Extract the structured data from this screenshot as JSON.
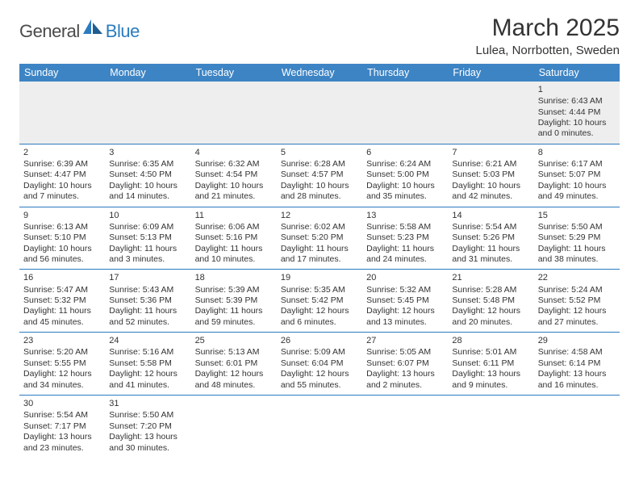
{
  "logo": {
    "text_dark": "General",
    "text_blue": "Blue",
    "dark_color": "#4a4a4a",
    "blue_color": "#2b7bbf"
  },
  "title": "March 2025",
  "location": "Lulea, Norrbotten, Sweden",
  "colors": {
    "header_bg": "#3d84c4",
    "header_text": "#ffffff",
    "cell_border": "#2b7bbf",
    "empty_bg": "#eeeeee",
    "text": "#333333",
    "background": "#ffffff"
  },
  "fonts": {
    "title_size": 30,
    "location_size": 15,
    "weekday_size": 12.5,
    "cell_size": 10.5
  },
  "weekdays": [
    "Sunday",
    "Monday",
    "Tuesday",
    "Wednesday",
    "Thursday",
    "Friday",
    "Saturday"
  ],
  "grid": [
    [
      null,
      null,
      null,
      null,
      null,
      null,
      {
        "n": "1",
        "sr": "Sunrise: 6:43 AM",
        "ss": "Sunset: 4:44 PM",
        "dl1": "Daylight: 10 hours",
        "dl2": "and 0 minutes."
      }
    ],
    [
      {
        "n": "2",
        "sr": "Sunrise: 6:39 AM",
        "ss": "Sunset: 4:47 PM",
        "dl1": "Daylight: 10 hours",
        "dl2": "and 7 minutes."
      },
      {
        "n": "3",
        "sr": "Sunrise: 6:35 AM",
        "ss": "Sunset: 4:50 PM",
        "dl1": "Daylight: 10 hours",
        "dl2": "and 14 minutes."
      },
      {
        "n": "4",
        "sr": "Sunrise: 6:32 AM",
        "ss": "Sunset: 4:54 PM",
        "dl1": "Daylight: 10 hours",
        "dl2": "and 21 minutes."
      },
      {
        "n": "5",
        "sr": "Sunrise: 6:28 AM",
        "ss": "Sunset: 4:57 PM",
        "dl1": "Daylight: 10 hours",
        "dl2": "and 28 minutes."
      },
      {
        "n": "6",
        "sr": "Sunrise: 6:24 AM",
        "ss": "Sunset: 5:00 PM",
        "dl1": "Daylight: 10 hours",
        "dl2": "and 35 minutes."
      },
      {
        "n": "7",
        "sr": "Sunrise: 6:21 AM",
        "ss": "Sunset: 5:03 PM",
        "dl1": "Daylight: 10 hours",
        "dl2": "and 42 minutes."
      },
      {
        "n": "8",
        "sr": "Sunrise: 6:17 AM",
        "ss": "Sunset: 5:07 PM",
        "dl1": "Daylight: 10 hours",
        "dl2": "and 49 minutes."
      }
    ],
    [
      {
        "n": "9",
        "sr": "Sunrise: 6:13 AM",
        "ss": "Sunset: 5:10 PM",
        "dl1": "Daylight: 10 hours",
        "dl2": "and 56 minutes."
      },
      {
        "n": "10",
        "sr": "Sunrise: 6:09 AM",
        "ss": "Sunset: 5:13 PM",
        "dl1": "Daylight: 11 hours",
        "dl2": "and 3 minutes."
      },
      {
        "n": "11",
        "sr": "Sunrise: 6:06 AM",
        "ss": "Sunset: 5:16 PM",
        "dl1": "Daylight: 11 hours",
        "dl2": "and 10 minutes."
      },
      {
        "n": "12",
        "sr": "Sunrise: 6:02 AM",
        "ss": "Sunset: 5:20 PM",
        "dl1": "Daylight: 11 hours",
        "dl2": "and 17 minutes."
      },
      {
        "n": "13",
        "sr": "Sunrise: 5:58 AM",
        "ss": "Sunset: 5:23 PM",
        "dl1": "Daylight: 11 hours",
        "dl2": "and 24 minutes."
      },
      {
        "n": "14",
        "sr": "Sunrise: 5:54 AM",
        "ss": "Sunset: 5:26 PM",
        "dl1": "Daylight: 11 hours",
        "dl2": "and 31 minutes."
      },
      {
        "n": "15",
        "sr": "Sunrise: 5:50 AM",
        "ss": "Sunset: 5:29 PM",
        "dl1": "Daylight: 11 hours",
        "dl2": "and 38 minutes."
      }
    ],
    [
      {
        "n": "16",
        "sr": "Sunrise: 5:47 AM",
        "ss": "Sunset: 5:32 PM",
        "dl1": "Daylight: 11 hours",
        "dl2": "and 45 minutes."
      },
      {
        "n": "17",
        "sr": "Sunrise: 5:43 AM",
        "ss": "Sunset: 5:36 PM",
        "dl1": "Daylight: 11 hours",
        "dl2": "and 52 minutes."
      },
      {
        "n": "18",
        "sr": "Sunrise: 5:39 AM",
        "ss": "Sunset: 5:39 PM",
        "dl1": "Daylight: 11 hours",
        "dl2": "and 59 minutes."
      },
      {
        "n": "19",
        "sr": "Sunrise: 5:35 AM",
        "ss": "Sunset: 5:42 PM",
        "dl1": "Daylight: 12 hours",
        "dl2": "and 6 minutes."
      },
      {
        "n": "20",
        "sr": "Sunrise: 5:32 AM",
        "ss": "Sunset: 5:45 PM",
        "dl1": "Daylight: 12 hours",
        "dl2": "and 13 minutes."
      },
      {
        "n": "21",
        "sr": "Sunrise: 5:28 AM",
        "ss": "Sunset: 5:48 PM",
        "dl1": "Daylight: 12 hours",
        "dl2": "and 20 minutes."
      },
      {
        "n": "22",
        "sr": "Sunrise: 5:24 AM",
        "ss": "Sunset: 5:52 PM",
        "dl1": "Daylight: 12 hours",
        "dl2": "and 27 minutes."
      }
    ],
    [
      {
        "n": "23",
        "sr": "Sunrise: 5:20 AM",
        "ss": "Sunset: 5:55 PM",
        "dl1": "Daylight: 12 hours",
        "dl2": "and 34 minutes."
      },
      {
        "n": "24",
        "sr": "Sunrise: 5:16 AM",
        "ss": "Sunset: 5:58 PM",
        "dl1": "Daylight: 12 hours",
        "dl2": "and 41 minutes."
      },
      {
        "n": "25",
        "sr": "Sunrise: 5:13 AM",
        "ss": "Sunset: 6:01 PM",
        "dl1": "Daylight: 12 hours",
        "dl2": "and 48 minutes."
      },
      {
        "n": "26",
        "sr": "Sunrise: 5:09 AM",
        "ss": "Sunset: 6:04 PM",
        "dl1": "Daylight: 12 hours",
        "dl2": "and 55 minutes."
      },
      {
        "n": "27",
        "sr": "Sunrise: 5:05 AM",
        "ss": "Sunset: 6:07 PM",
        "dl1": "Daylight: 13 hours",
        "dl2": "and 2 minutes."
      },
      {
        "n": "28",
        "sr": "Sunrise: 5:01 AM",
        "ss": "Sunset: 6:11 PM",
        "dl1": "Daylight: 13 hours",
        "dl2": "and 9 minutes."
      },
      {
        "n": "29",
        "sr": "Sunrise: 4:58 AM",
        "ss": "Sunset: 6:14 PM",
        "dl1": "Daylight: 13 hours",
        "dl2": "and 16 minutes."
      }
    ],
    [
      {
        "n": "30",
        "sr": "Sunrise: 5:54 AM",
        "ss": "Sunset: 7:17 PM",
        "dl1": "Daylight: 13 hours",
        "dl2": "and 23 minutes."
      },
      {
        "n": "31",
        "sr": "Sunrise: 5:50 AM",
        "ss": "Sunset: 7:20 PM",
        "dl1": "Daylight: 13 hours",
        "dl2": "and 30 minutes."
      },
      null,
      null,
      null,
      null,
      null
    ]
  ]
}
